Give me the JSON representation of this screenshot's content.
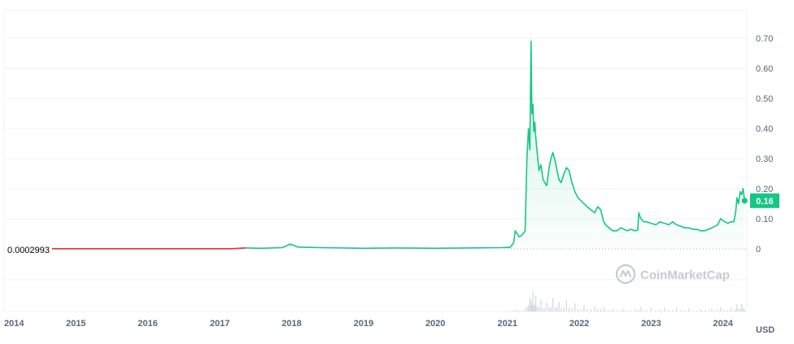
{
  "chart_data": {
    "type": "line",
    "yaxis_ticks": [
      "0.70",
      "0.60",
      "0.50",
      "0.40",
      "0.30",
      "0.20",
      "0.10",
      "0"
    ],
    "ylim": [
      0,
      0.7
    ],
    "xaxis_ticks": [
      "2014",
      "2015",
      "2016",
      "2017",
      "2018",
      "2019",
      "2020",
      "2021",
      "2022",
      "2023",
      "2024"
    ],
    "xlim": [
      "2014-01-01",
      "2024-05-01"
    ],
    "unit": "USD",
    "start_value_label": "0.0002993",
    "current_value_label": "0.16",
    "watermark": "CoinMarketCap",
    "colors": {
      "line": "#16c784",
      "fill": "#16c784",
      "baseline": "#ea3943",
      "volume": "#cfd6e4",
      "badge": "#16c784"
    },
    "series": [
      {
        "x": [
          "2014-09-01",
          "2015-06-01",
          "2016-06-01",
          "2017-03-01",
          "2017-05-15",
          "2017-08-01",
          "2017-11-15",
          "2017-12-25",
          "2018-02-01",
          "2018-06-01",
          "2019-01-01",
          "2019-06-01",
          "2020-01-01",
          "2020-06-01",
          "2020-12-01",
          "2021-01-15",
          "2021-02-01",
          "2021-02-10",
          "2021-02-20",
          "2021-03-01",
          "2021-03-15",
          "2021-04-01",
          "2021-04-10",
          "2021-04-18",
          "2021-04-25",
          "2021-05-01",
          "2021-05-05",
          "2021-05-10",
          "2021-05-15",
          "2021-05-20",
          "2021-05-25",
          "2021-06-01",
          "2021-06-10",
          "2021-06-20",
          "2021-07-01",
          "2021-07-10",
          "2021-07-20",
          "2021-08-01",
          "2021-08-10",
          "2021-08-20",
          "2021-09-01",
          "2021-09-10",
          "2021-09-20",
          "2021-10-01",
          "2021-10-15",
          "2021-10-28",
          "2021-11-10",
          "2021-11-25",
          "2021-12-10",
          "2021-12-25",
          "2022-01-10",
          "2022-01-25",
          "2022-02-10",
          "2022-03-01",
          "2022-03-20",
          "2022-04-05",
          "2022-04-20",
          "2022-05-05",
          "2022-05-15",
          "2022-06-01",
          "2022-06-20",
          "2022-07-10",
          "2022-08-01",
          "2022-08-15",
          "2022-09-01",
          "2022-09-20",
          "2022-10-10",
          "2022-10-25",
          "2022-10-30",
          "2022-11-10",
          "2022-11-25",
          "2022-12-10",
          "2023-01-01",
          "2023-01-25",
          "2023-02-15",
          "2023-03-10",
          "2023-04-01",
          "2023-04-20",
          "2023-05-10",
          "2023-06-01",
          "2023-06-20",
          "2023-07-10",
          "2023-08-01",
          "2023-08-20",
          "2023-09-10",
          "2023-10-01",
          "2023-10-20",
          "2023-11-05",
          "2023-11-20",
          "2023-12-05",
          "2023-12-20",
          "2024-01-10",
          "2024-01-25",
          "2024-02-10",
          "2024-02-25",
          "2024-03-05",
          "2024-03-12",
          "2024-03-20",
          "2024-03-28",
          "2024-04-05",
          "2024-04-12",
          "2024-04-20"
        ],
        "y": [
          0.0003,
          0.0003,
          0.0003,
          0.0003,
          0.003,
          0.002,
          0.004,
          0.016,
          0.006,
          0.004,
          0.002,
          0.003,
          0.002,
          0.003,
          0.004,
          0.005,
          0.02,
          0.06,
          0.05,
          0.04,
          0.045,
          0.06,
          0.3,
          0.4,
          0.33,
          0.69,
          0.45,
          0.48,
          0.39,
          0.42,
          0.37,
          0.32,
          0.26,
          0.28,
          0.23,
          0.22,
          0.21,
          0.27,
          0.3,
          0.32,
          0.29,
          0.26,
          0.23,
          0.22,
          0.25,
          0.27,
          0.26,
          0.22,
          0.19,
          0.17,
          0.16,
          0.15,
          0.14,
          0.13,
          0.12,
          0.14,
          0.13,
          0.09,
          0.08,
          0.07,
          0.06,
          0.06,
          0.07,
          0.065,
          0.06,
          0.065,
          0.06,
          0.062,
          0.12,
          0.1,
          0.09,
          0.09,
          0.085,
          0.08,
          0.09,
          0.085,
          0.08,
          0.09,
          0.08,
          0.075,
          0.07,
          0.07,
          0.065,
          0.065,
          0.06,
          0.06,
          0.065,
          0.07,
          0.075,
          0.08,
          0.1,
          0.09,
          0.085,
          0.09,
          0.09,
          0.12,
          0.17,
          0.15,
          0.19,
          0.18,
          0.2,
          0.16
        ]
      }
    ]
  }
}
